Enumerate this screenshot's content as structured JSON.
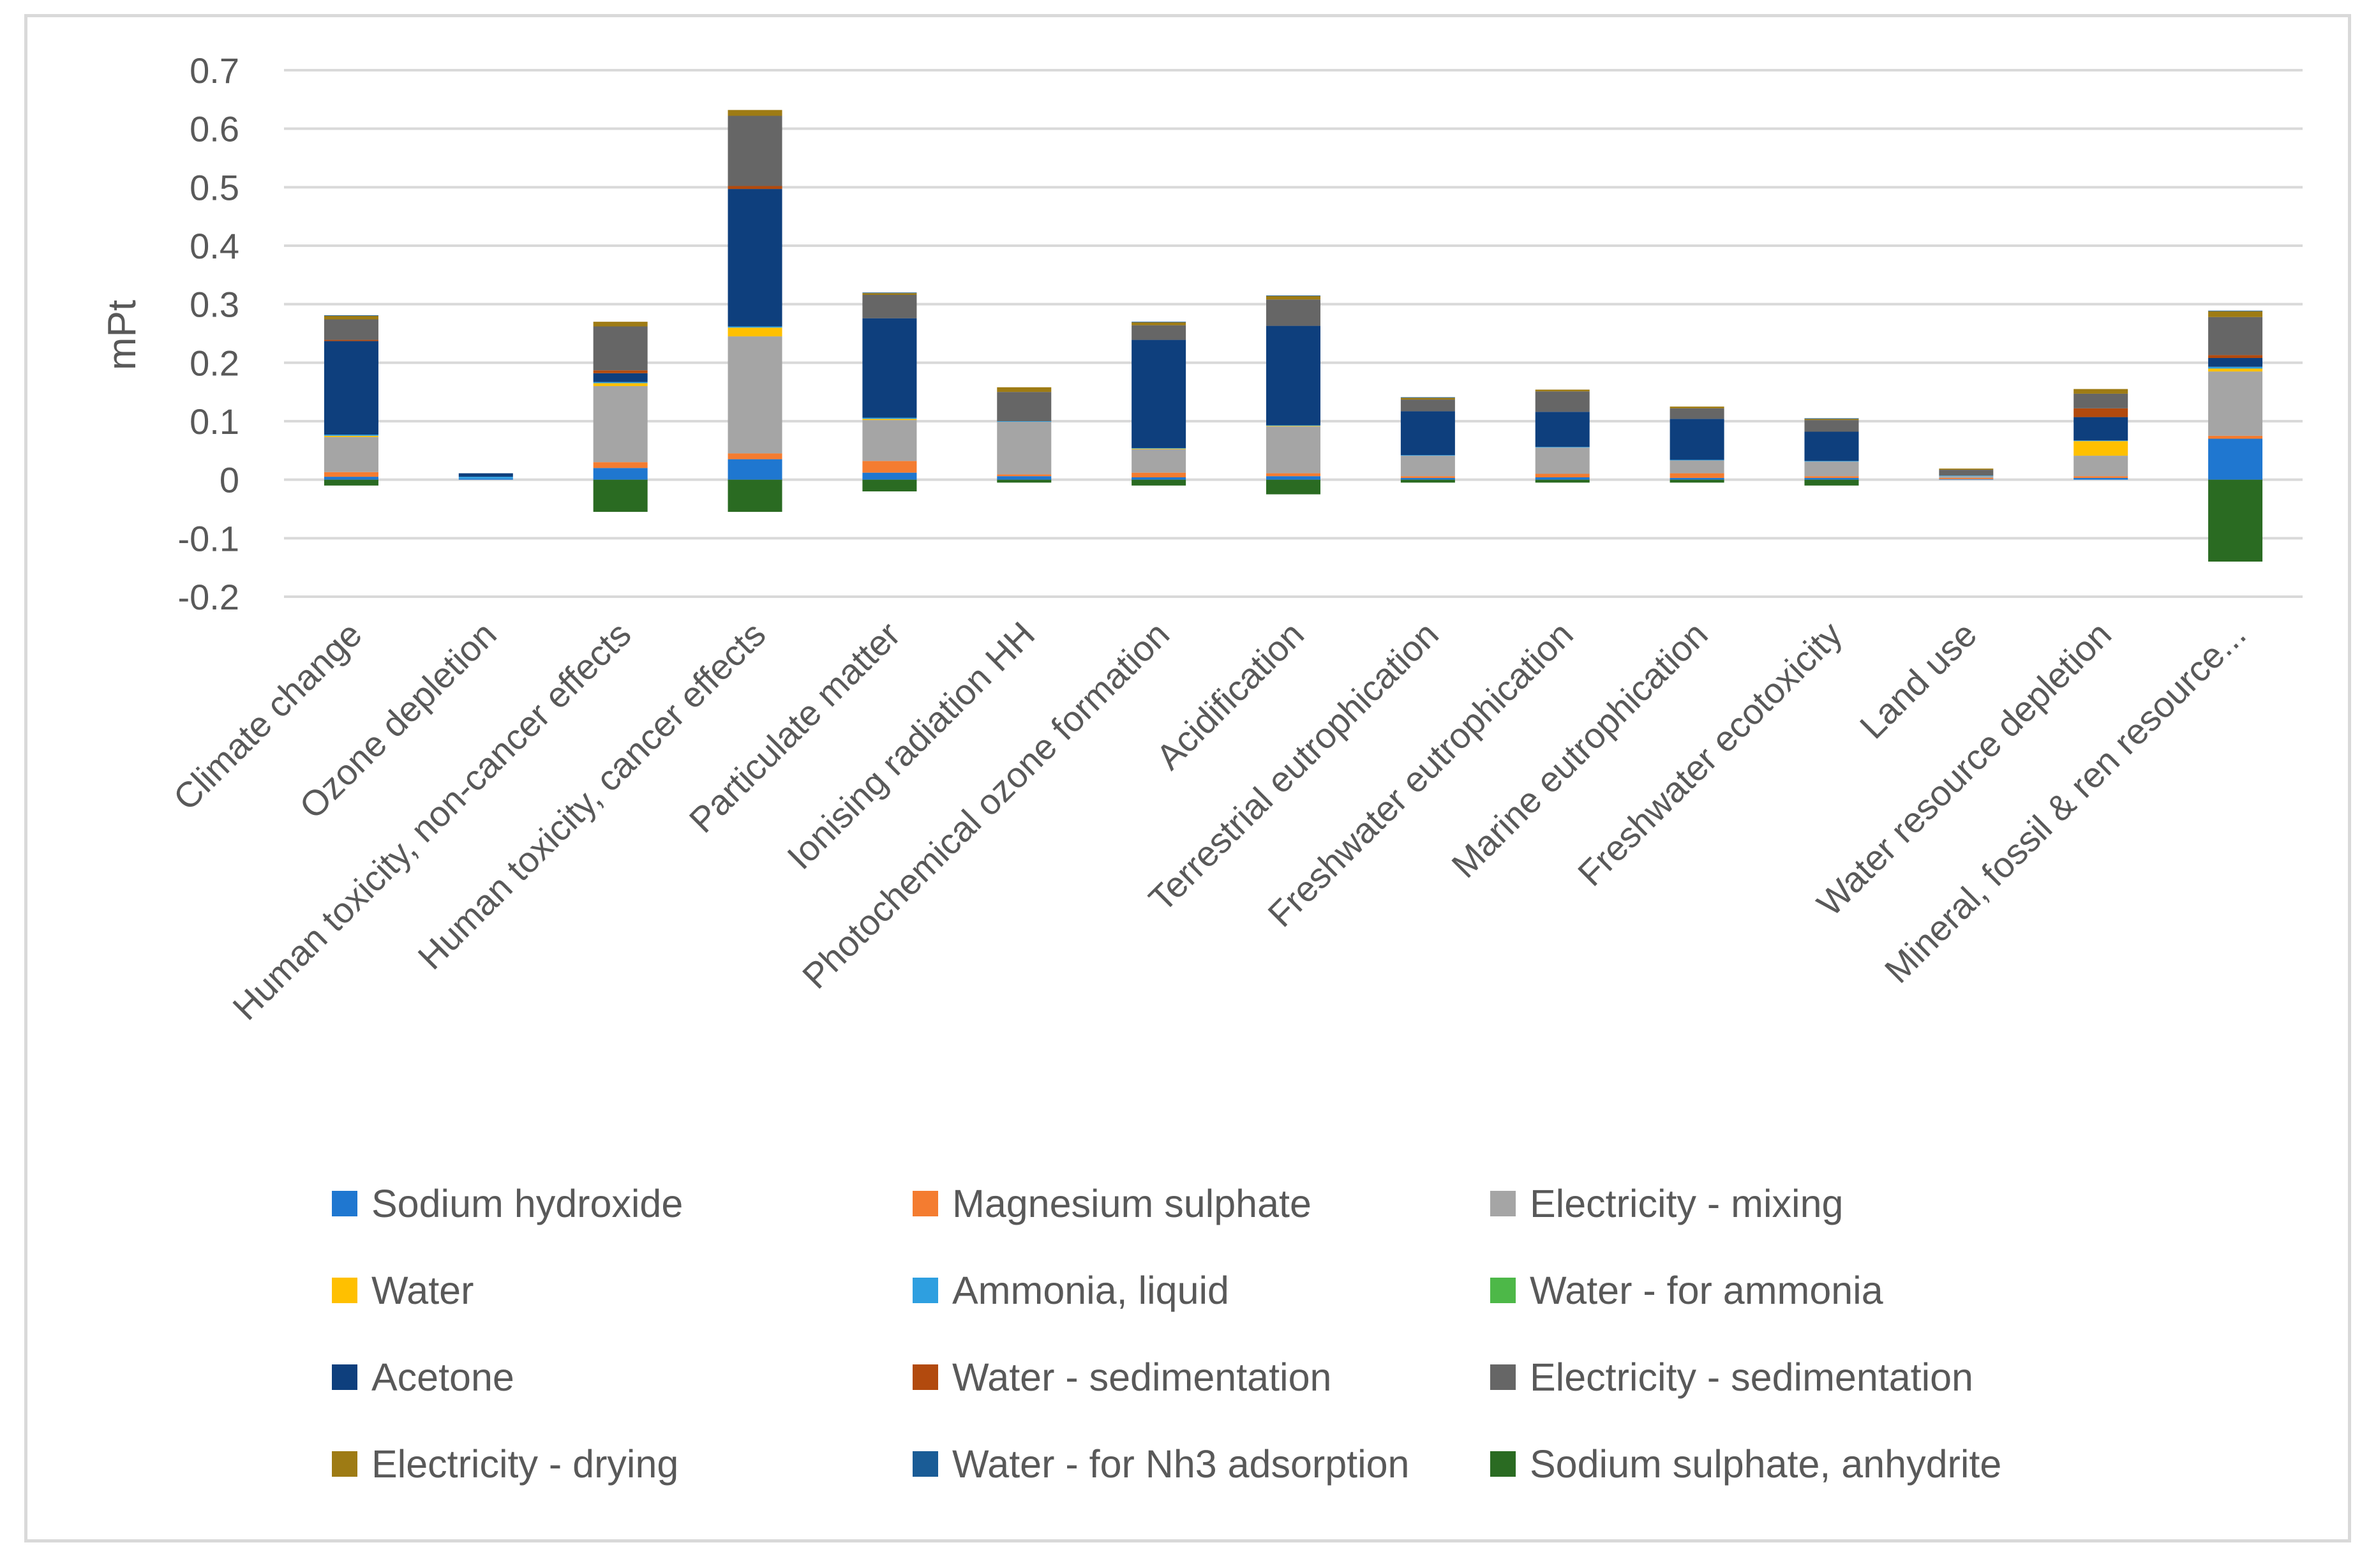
{
  "chart_data": {
    "type": "bar",
    "stacked": true,
    "title": "",
    "xlabel": "",
    "ylabel": "mPt",
    "ylim": [
      -0.2,
      0.7
    ],
    "yticks": [
      0.7,
      0.6,
      0.5,
      0.4,
      0.3,
      0.2,
      0.1,
      0,
      -0.1,
      -0.2
    ],
    "ytick_labels": [
      "0.7",
      "0.6",
      "0.5",
      "0.4",
      "0.3",
      "0.2",
      "0.1",
      "0",
      "-0.1",
      "-0.2"
    ],
    "grid": true,
    "legend_position": "bottom",
    "categories": [
      "Climate change",
      "Ozone depletion",
      "Human toxicity, non-cancer effects",
      "Human toxicity, cancer effects",
      "Particulate matter",
      "Ionising radiation HH",
      "Photochemical ozone formation",
      "Acidification",
      "Terrestrial eutrophication",
      "Freshwater eutrophication",
      "Marine eutrophication",
      "Freshwater ecotoxicity",
      "Land use",
      "Water resource depletion",
      "Mineral, fossil & ren resource..."
    ],
    "series": [
      {
        "name": "Sodium hydroxide",
        "color": "#1f77d0",
        "values": [
          0.005,
          0.002,
          0.02,
          0.035,
          0.012,
          0.006,
          0.004,
          0.006,
          0.003,
          0.004,
          0.003,
          0.003,
          0.001,
          0.003,
          0.07
        ]
      },
      {
        "name": "Magnesium sulphate",
        "color": "#f47c30",
        "values": [
          0.008,
          0,
          0.01,
          0.01,
          0.02,
          0.003,
          0.008,
          0.005,
          0.003,
          0.006,
          0.008,
          0.003,
          0.002,
          0.003,
          0.005
        ]
      },
      {
        "name": "Electricity - mixing",
        "color": "#a5a5a5",
        "values": [
          0.06,
          0,
          0.13,
          0.2,
          0.07,
          0.09,
          0.04,
          0.08,
          0.035,
          0.045,
          0.022,
          0.025,
          0.003,
          0.035,
          0.11
        ]
      },
      {
        "name": "Water",
        "color": "#ffc000",
        "values": [
          0.002,
          0,
          0.005,
          0.015,
          0.002,
          0,
          0.001,
          0.001,
          0,
          0,
          0,
          0,
          0,
          0.025,
          0.005
        ]
      },
      {
        "name": "Ammonia, liquid",
        "color": "#2e9fe0",
        "values": [
          0.002,
          0.003,
          0.002,
          0.002,
          0.002,
          0.001,
          0.001,
          0.001,
          0.001,
          0.001,
          0.001,
          0.001,
          0.001,
          0.001,
          0.003
        ]
      },
      {
        "name": "Water - for ammonia",
        "color": "#4db848",
        "values": [
          0,
          0,
          0,
          0,
          0,
          0,
          0,
          0,
          0,
          0,
          0,
          0,
          0,
          0,
          0
        ]
      },
      {
        "name": "Acetone",
        "color": "#0e3f7d",
        "values": [
          0.16,
          0.006,
          0.015,
          0.235,
          0.17,
          0,
          0.185,
          0.17,
          0.075,
          0.06,
          0.07,
          0.05,
          0,
          0.04,
          0.015
        ]
      },
      {
        "name": "Water - sedimentation",
        "color": "#b24a0e",
        "values": [
          0.002,
          0,
          0.005,
          0.005,
          0,
          0,
          0,
          0,
          0,
          0,
          0,
          0,
          0,
          0.015,
          0.005
        ]
      },
      {
        "name": "Electricity  - sedimentation",
        "color": "#666666",
        "values": [
          0.035,
          0,
          0.075,
          0.12,
          0.04,
          0.05,
          0.025,
          0.045,
          0.02,
          0.035,
          0.018,
          0.02,
          0.01,
          0.025,
          0.065
        ]
      },
      {
        "name": "Electricity - drying",
        "color": "#9e7b14",
        "values": [
          0.006,
          0,
          0.008,
          0.01,
          0.003,
          0.008,
          0.005,
          0.006,
          0.003,
          0.003,
          0.003,
          0.002,
          0.002,
          0.008,
          0.01
        ]
      },
      {
        "name": "Water - for Nh3 adsorption",
        "color": "#1a5c96",
        "values": [
          0.001,
          0,
          0,
          0,
          0.001,
          0,
          0.001,
          0.001,
          0.001,
          0,
          0,
          0.001,
          0,
          0,
          0.001
        ]
      },
      {
        "name": "Sodium sulphate, anhydrite",
        "color": "#2a6b22",
        "values": [
          -0.01,
          0,
          -0.055,
          -0.055,
          -0.02,
          -0.005,
          -0.01,
          -0.025,
          -0.005,
          -0.005,
          -0.005,
          -0.01,
          0,
          0,
          -0.14
        ]
      }
    ]
  }
}
